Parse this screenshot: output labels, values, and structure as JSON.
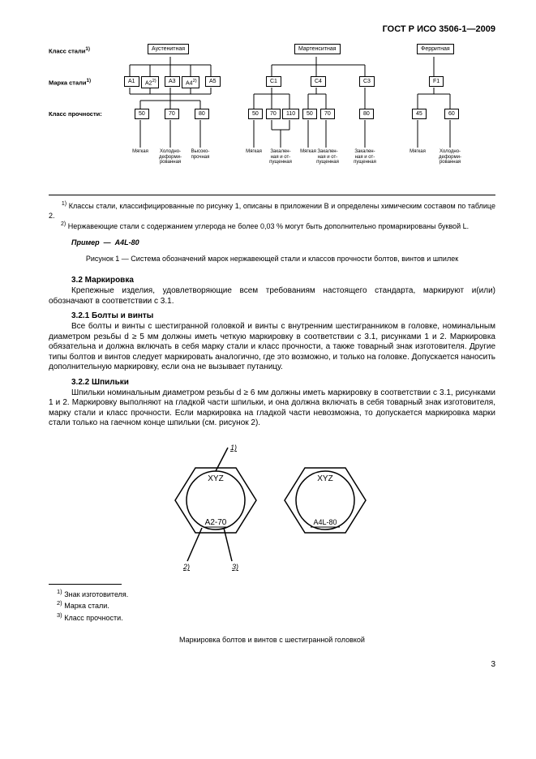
{
  "header": "ГОСТ Р ИСО 3506-1—2009",
  "diagram": {
    "row_labels": {
      "class_steel": "Класс стали",
      "grade_steel": "Марка стали",
      "strength_class": "Класс прочности:"
    },
    "steel_classes": {
      "austenitic": "Аустенитная",
      "martensitic": "Мартенситная",
      "ferritic": "Ферритная"
    },
    "grades": {
      "a1": "А1",
      "a2": "А2",
      "a3": "А3",
      "a4": "А4",
      "a5": "А5",
      "c1": "С1",
      "c4": "С4",
      "c3": "С3",
      "f1": "F1"
    },
    "sup1": "1)",
    "sup2": "2)",
    "strengths": {
      "s50": "50",
      "s70": "70",
      "s80": "80",
      "s110": "110",
      "s45": "45",
      "s60": "60"
    },
    "bottom_labels": {
      "l1": "Мягкая",
      "l2": "Холодно-\nдеформи-\nрованная",
      "l3": "Высоко-\nпрочная",
      "l4": "Мягкая",
      "l5": "Закален-\nная и от-\nпущенная",
      "l6": "Мягкая",
      "l7": "Закален-\nная и от-\nпущенная",
      "l8": "Закален-\nная и от-\nпущенная",
      "l9": "Мягкая",
      "l10": "Холодно-\nдеформи-\nрованная"
    }
  },
  "footnotes_top": {
    "f1": "Классы стали, классифицированные по рисунку 1, описаны в приложении В и определены химическим составом по таблице 2.",
    "f2": "Нержавеющие стали с содержанием углерода не более 0,03 % могут быть дополнительно промаркированы буквой L."
  },
  "example_label": "Пример",
  "example_value": "А4L-80",
  "figure1_caption": "Рисунок 1 — Система обозначений марок нержавеющей стали и классов прочности болтов, винтов и шпилек",
  "sections": {
    "s32_title": "3.2  Маркировка",
    "s32_body": "Крепежные изделия, удовлетворяющие всем требованиям настоящего стандарта, маркируют и(или) обозначают в соответствии с 3.1.",
    "s321_title": "3.2.1  Болты и винты",
    "s321_body": "Все болты и винты с шестигранной головкой и винты с внутренним шестигранником в головке, номинальным диаметром резьбы d ≥ 5 мм должны иметь четкую маркировку в соответствии с 3.1, рисунками 1 и 2. Маркировка обязательна и должна включать в себя марку стали и класс прочности, а также товарный знак изготовителя. Другие типы болтов и винтов следует маркировать аналогично, где это возможно, и только на головке. Допускается наносить дополнительную маркировку, если она не вызывает путаницу.",
    "s322_title": "3.2.2  Шпильки",
    "s322_body": "Шпильки номинальным диаметром резьбы d ≥ 6 мм должны иметь маркировку в соответствии с 3.1, рисунками 1 и 2. Маркировку выполняют на гладкой части шпильки, и она должна включать в себя товарный знак изготовителя, марку стали и класс прочности. Если маркировка на гладкой части невозможна, то допускается маркировка марки стали только на гаечном конце шпильки (см. рисунок 2)."
  },
  "hex": {
    "top1": "XYZ",
    "bottom1": "А2-70",
    "top2": "XYZ",
    "bottom2": "А4L-80",
    "ref1": "1)",
    "ref2": "2)",
    "ref3": "3)"
  },
  "footnotes_bottom": {
    "f1": "Знак изготовителя.",
    "f2": "Марка стали.",
    "f3": "Класс прочности."
  },
  "figure2_caption": "Маркировка болтов и винтов с шестигранной головкой",
  "page_num": "3",
  "colors": {
    "text": "#000000",
    "background": "#ffffff",
    "line": "#000000"
  }
}
